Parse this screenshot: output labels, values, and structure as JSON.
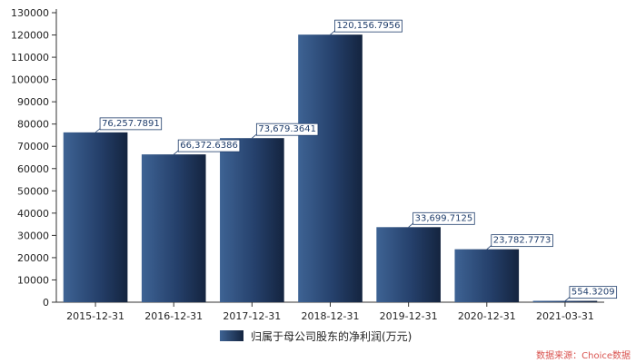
{
  "chart_data": {
    "type": "bar",
    "categories": [
      "2015-12-31",
      "2016-12-31",
      "2017-12-31",
      "2018-12-31",
      "2019-12-31",
      "2020-12-31",
      "2021-03-31"
    ],
    "series": [
      {
        "name": "归属于母公司股东的净利润(万元)",
        "values": [
          76257.7891,
          66372.6386,
          73679.3641,
          120156.7956,
          33699.7125,
          23782.7773,
          554.3209
        ],
        "labels": [
          "76,257.7891",
          "66,372.6386",
          "73,679.3641",
          "120,156.7956",
          "33,699.7125",
          "23,782.7773",
          "554.3209"
        ]
      }
    ],
    "ylim": [
      0,
      130000
    ],
    "yticks": [
      0,
      10000,
      20000,
      30000,
      40000,
      50000,
      60000,
      70000,
      80000,
      90000,
      100000,
      110000,
      120000,
      130000
    ],
    "ytick_labels": [
      "0",
      "10000",
      "20000",
      "30000",
      "40000",
      "50000",
      "60000",
      "70000",
      "80000",
      "90000",
      "100000",
      "110000",
      "120000",
      "130000"
    ],
    "grid": false,
    "legend_position": "bottom-center",
    "colors": {
      "bar_light": "#3e6394",
      "bar_dark": "#14243f",
      "label_text": "#1f3d6b",
      "label_border": "#1f3d6b",
      "source": "#d9534f"
    }
  },
  "source_note": "数据来源：Choice数据"
}
